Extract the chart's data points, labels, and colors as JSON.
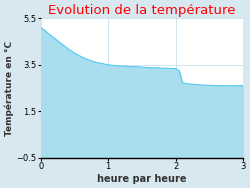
{
  "title": "Evolution de la température",
  "xlabel": "heure par heure",
  "ylabel": "Température en °C",
  "title_color": "#ff0000",
  "background_color": "#d8e8f0",
  "plot_bg_color": "#ffffff",
  "line_color": "#55ccee",
  "fill_color": "#aaddee",
  "xlim": [
    0,
    3
  ],
  "ylim": [
    -0.5,
    5.5
  ],
  "xticks": [
    0,
    1,
    2,
    3
  ],
  "yticks": [
    -0.5,
    1.5,
    3.5,
    5.5
  ],
  "x": [
    0,
    0.05,
    0.1,
    0.2,
    0.3,
    0.4,
    0.5,
    0.6,
    0.7,
    0.8,
    0.9,
    1.0,
    1.1,
    1.2,
    1.3,
    1.4,
    1.5,
    1.6,
    1.7,
    1.8,
    1.9,
    2.0,
    2.05,
    2.1,
    2.2,
    2.3,
    2.4,
    2.5,
    2.6,
    2.7,
    2.8,
    2.9,
    3.0
  ],
  "y": [
    5.1,
    5.0,
    4.87,
    4.65,
    4.42,
    4.2,
    4.0,
    3.85,
    3.72,
    3.62,
    3.56,
    3.5,
    3.47,
    3.45,
    3.43,
    3.42,
    3.4,
    3.38,
    3.37,
    3.36,
    3.35,
    3.34,
    3.25,
    2.72,
    2.68,
    2.65,
    2.63,
    2.62,
    2.61,
    2.6,
    2.6,
    2.6,
    2.61
  ],
  "fill_baseline": -0.5,
  "grid_color": "#c0d8e8",
  "tick_fontsize": 6,
  "label_fontsize": 7,
  "title_fontsize": 9.5,
  "ylabel_fontsize": 6.5
}
